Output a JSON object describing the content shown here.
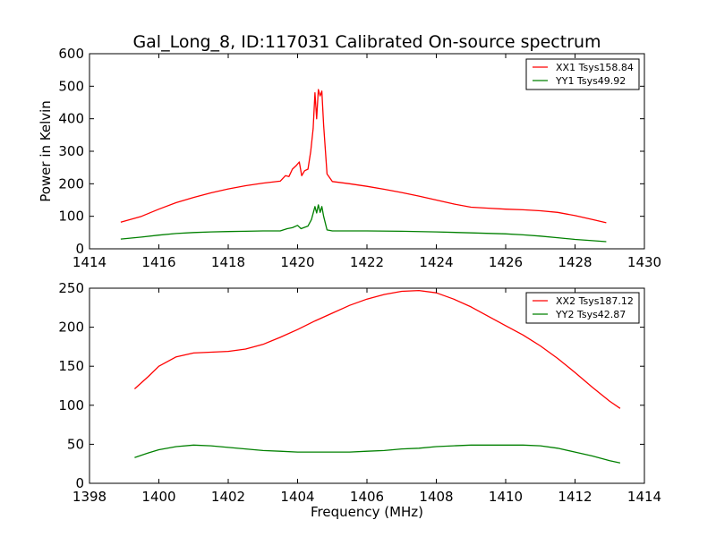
{
  "figure": {
    "title": "Gal_Long_8, ID:117031 Calibrated On-source spectrum",
    "ylabel": "Power in Kelvin",
    "xlabel": "Frequency (MHz)",
    "colors": {
      "xx": "#ff0000",
      "yy": "#008000",
      "axes": "#000000",
      "background": "#ffffff"
    }
  },
  "chart_data": [
    {
      "type": "line",
      "title": "Gal_Long_8, ID:117031 Calibrated On-source spectrum",
      "xlabel": "",
      "ylabel": "Power in Kelvin",
      "xlim": [
        1414,
        1430
      ],
      "ylim": [
        0,
        600
      ],
      "xticks": [
        "1414",
        "1416",
        "1418",
        "1420",
        "1422",
        "1424",
        "1426",
        "1428",
        "1430"
      ],
      "yticks": [
        "0",
        "100",
        "200",
        "300",
        "400",
        "500",
        "600"
      ],
      "grid": false,
      "legend_position": "top-right",
      "series": [
        {
          "name": "XX1 Tsys158.84",
          "color": "#ff0000",
          "x": [
            1414.9,
            1415.5,
            1416,
            1416.5,
            1417,
            1417.5,
            1418,
            1418.5,
            1419,
            1419.5,
            1419.65,
            1419.75,
            1419.85,
            1419.95,
            1420.05,
            1420.12,
            1420.2,
            1420.3,
            1420.38,
            1420.45,
            1420.5,
            1420.55,
            1420.6,
            1420.65,
            1420.7,
            1420.75,
            1420.85,
            1421,
            1421.5,
            1422,
            1422.5,
            1423,
            1423.5,
            1424,
            1424.5,
            1425,
            1425.5,
            1426,
            1426.5,
            1427,
            1427.5,
            1428,
            1428.5,
            1428.9
          ],
          "values": [
            82,
            100,
            122,
            142,
            158,
            172,
            184,
            194,
            202,
            208,
            225,
            222,
            245,
            255,
            267,
            225,
            240,
            245,
            300,
            370,
            480,
            400,
            490,
            470,
            485,
            380,
            230,
            207,
            200,
            192,
            183,
            173,
            162,
            150,
            138,
            128,
            125,
            122,
            120,
            117,
            112,
            102,
            90,
            80
          ]
        },
        {
          "name": "YY1 Tsys49.92",
          "color": "#008000",
          "x": [
            1414.9,
            1415.5,
            1416,
            1416.5,
            1417,
            1417.5,
            1418,
            1418.5,
            1419,
            1419.5,
            1419.7,
            1419.85,
            1420,
            1420.1,
            1420.2,
            1420.3,
            1420.4,
            1420.5,
            1420.55,
            1420.6,
            1420.65,
            1420.7,
            1420.75,
            1420.85,
            1421,
            1421.5,
            1422,
            1423,
            1424,
            1425,
            1426,
            1426.5,
            1427,
            1427.5,
            1428,
            1428.5,
            1428.9
          ],
          "values": [
            30,
            36,
            42,
            47,
            50,
            52,
            53,
            54,
            55,
            55,
            62,
            65,
            72,
            62,
            66,
            70,
            90,
            130,
            110,
            135,
            112,
            130,
            100,
            58,
            55,
            55,
            55,
            54,
            52,
            49,
            46,
            43,
            39,
            34,
            29,
            25,
            22
          ]
        }
      ]
    },
    {
      "type": "line",
      "title": "",
      "xlabel": "Frequency (MHz)",
      "ylabel": "",
      "xlim": [
        1398,
        1414
      ],
      "ylim": [
        0,
        250
      ],
      "xticks": [
        "1398",
        "1400",
        "1402",
        "1404",
        "1406",
        "1408",
        "1410",
        "1412",
        "1414"
      ],
      "yticks": [
        "0",
        "50",
        "100",
        "150",
        "200",
        "250"
      ],
      "grid": false,
      "legend_position": "top-right",
      "series": [
        {
          "name": "XX2 Tsys187.12",
          "color": "#ff0000",
          "x": [
            1399.3,
            1399.7,
            1400,
            1400.5,
            1401,
            1401.5,
            1402,
            1402.5,
            1403,
            1403.5,
            1404,
            1404.5,
            1405,
            1405.5,
            1406,
            1406.5,
            1407,
            1407.5,
            1408,
            1408.5,
            1409,
            1409.5,
            1410,
            1410.5,
            1411,
            1411.5,
            1412,
            1412.5,
            1413,
            1413.3
          ],
          "values": [
            121,
            137,
            150,
            162,
            167,
            168,
            169,
            172,
            178,
            187,
            197,
            208,
            218,
            228,
            236,
            242,
            246,
            247,
            244,
            236,
            226,
            214,
            202,
            190,
            176,
            160,
            142,
            123,
            105,
            96
          ]
        },
        {
          "name": "YY2 Tsys42.87",
          "color": "#008000",
          "x": [
            1399.3,
            1399.7,
            1400,
            1400.5,
            1401,
            1401.5,
            1402,
            1402.5,
            1403,
            1403.5,
            1404,
            1404.5,
            1405,
            1405.5,
            1406,
            1406.5,
            1407,
            1407.5,
            1408,
            1408.5,
            1409,
            1409.5,
            1410,
            1410.5,
            1411,
            1411.5,
            1412,
            1412.5,
            1413,
            1413.3
          ],
          "values": [
            33,
            39,
            43,
            47,
            49,
            48,
            46,
            44,
            42,
            41,
            40,
            40,
            40,
            40,
            41,
            42,
            44,
            45,
            47,
            48,
            49,
            49,
            49,
            49,
            48,
            45,
            40,
            35,
            29,
            26
          ]
        }
      ]
    }
  ]
}
